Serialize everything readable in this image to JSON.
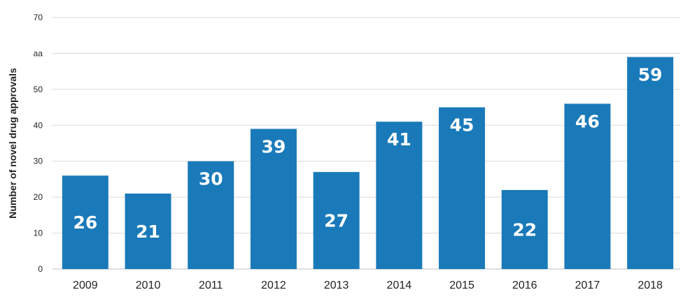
{
  "chart_data": {
    "type": "bar",
    "categories": [
      "2009",
      "2010",
      "2011",
      "2012",
      "2013",
      "2014",
      "2015",
      "2016",
      "2017",
      "2018"
    ],
    "values": [
      26,
      21,
      30,
      39,
      27,
      41,
      45,
      22,
      46,
      59
    ],
    "data_labels": [
      "26",
      "21",
      "30",
      "39",
      "27",
      "41",
      "45",
      "22",
      "46",
      "59"
    ],
    "ylabel": "Number of novel drug approvals",
    "ylim": [
      0,
      70
    ],
    "yticks": [
      0,
      10,
      20,
      30,
      40,
      50,
      60,
      70
    ],
    "ytick_labels": [
      "0",
      "10",
      "20",
      "30",
      "40",
      "50",
      "aa",
      "70"
    ],
    "grid": true,
    "bar_color": "#1a7ab9",
    "grid_color": "#d9d9d9"
  }
}
